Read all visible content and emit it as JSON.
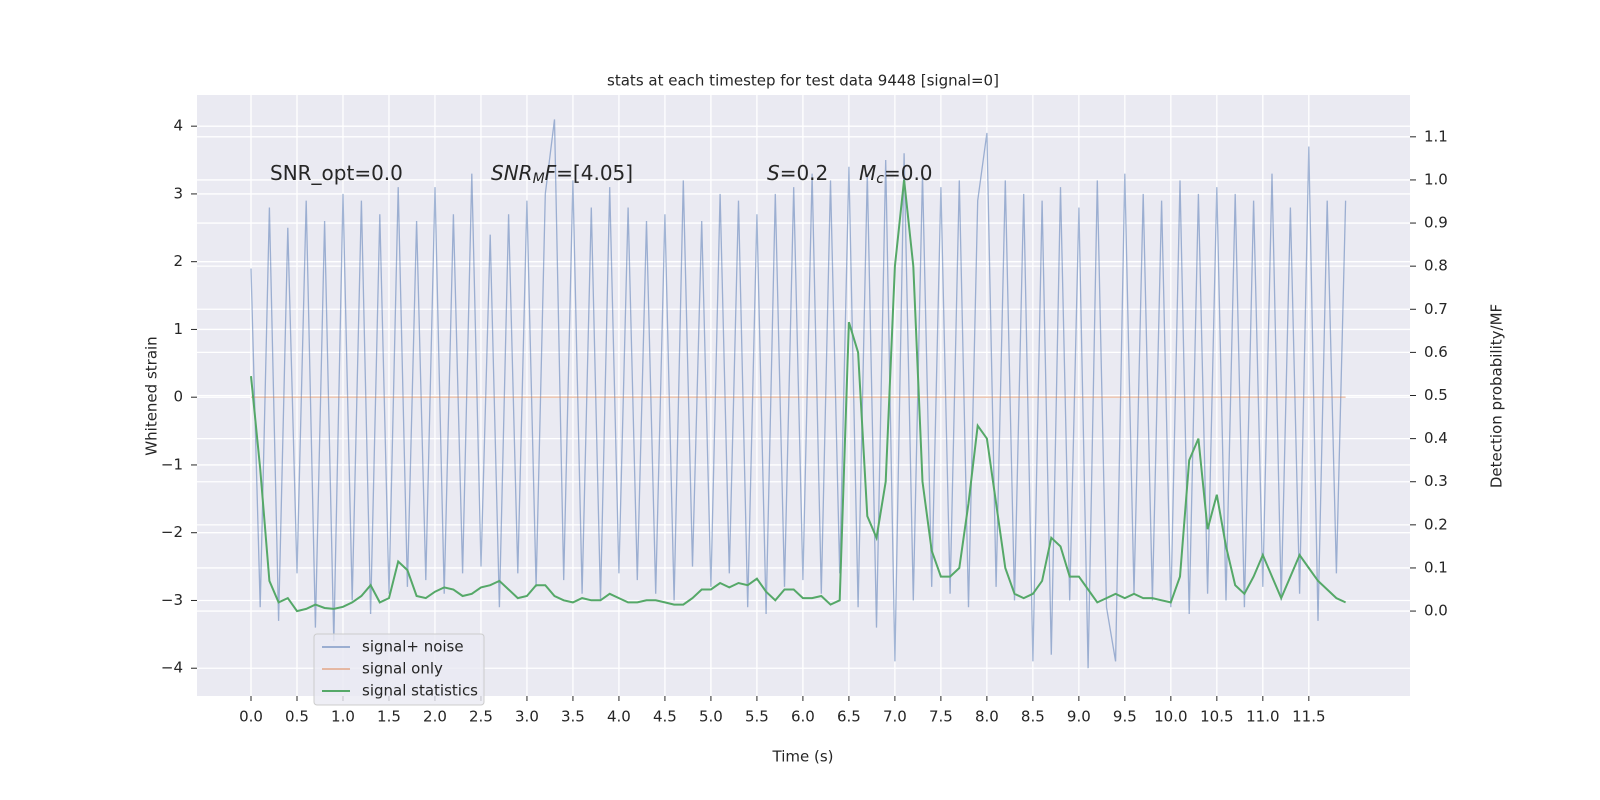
{
  "chart_data": {
    "type": "line",
    "title": "stats at each timestep for test data 9448 [signal=0]",
    "xlabel": "Time (s)",
    "ylabel": "Whitened strain",
    "y2label": "Detection probability/MF",
    "annotations": [
      {
        "parts": [
          {
            "text": "SNR_opt=0.0"
          }
        ]
      },
      {
        "parts": [
          {
            "text": "SNR",
            "style": "italic"
          },
          {
            "text": "M",
            "style": "sub"
          },
          {
            "text": "F",
            "style": "italic"
          },
          {
            "text": "=[4.05]"
          }
        ]
      },
      {
        "parts": [
          {
            "text": "S",
            "style": "italic"
          },
          {
            "text": "=0.2"
          }
        ]
      },
      {
        "parts": [
          {
            "text": "M",
            "style": "italic"
          },
          {
            "text": "c",
            "style": "sub"
          },
          {
            "text": "=0.0"
          }
        ]
      }
    ],
    "x": [
      0.0,
      0.1,
      0.2,
      0.3,
      0.4,
      0.5,
      0.6,
      0.7,
      0.8,
      0.9,
      1.0,
      1.1,
      1.2,
      1.3,
      1.4,
      1.5,
      1.6,
      1.7,
      1.8,
      1.9,
      2.0,
      2.1,
      2.2,
      2.3,
      2.4,
      2.5,
      2.6,
      2.7,
      2.8,
      2.9,
      3.0,
      3.1,
      3.2,
      3.3,
      3.4,
      3.5,
      3.6,
      3.7,
      3.8,
      3.9,
      4.0,
      4.1,
      4.2,
      4.3,
      4.4,
      4.5,
      4.6,
      4.7,
      4.8,
      4.9,
      5.0,
      5.1,
      5.2,
      5.3,
      5.4,
      5.5,
      5.6,
      5.7,
      5.8,
      5.9,
      6.0,
      6.1,
      6.2,
      6.3,
      6.4,
      6.5,
      6.6,
      6.7,
      6.8,
      6.9,
      7.0,
      7.1,
      7.2,
      7.3,
      7.4,
      7.5,
      7.6,
      7.7,
      7.8,
      7.9,
      8.0,
      8.1,
      8.2,
      8.3,
      8.4,
      8.5,
      8.6,
      8.7,
      8.8,
      8.9,
      9.0,
      9.1,
      9.2,
      9.3,
      9.4,
      9.5,
      9.6,
      9.7,
      9.8,
      9.9,
      10.0,
      10.1,
      10.2,
      10.3,
      10.4,
      10.5,
      10.6,
      10.7,
      10.8,
      10.9,
      11.0,
      11.1,
      11.2,
      11.3,
      11.4,
      11.5,
      11.6,
      11.7,
      11.8,
      11.9
    ],
    "series": [
      {
        "name": "signal+ noise",
        "color": "#4c72b0",
        "alpha": 0.5,
        "axis": "y",
        "values": [
          1.9,
          -3.1,
          2.8,
          -3.3,
          2.5,
          -2.6,
          2.9,
          -3.4,
          2.6,
          -3.6,
          3.0,
          -3.0,
          2.9,
          -3.2,
          2.7,
          -2.9,
          3.1,
          -2.8,
          2.6,
          -2.7,
          3.1,
          -2.9,
          2.7,
          -2.6,
          3.3,
          -2.5,
          2.4,
          -3.1,
          2.7,
          -2.6,
          2.9,
          -2.8,
          3.0,
          4.1,
          -2.7,
          3.2,
          -2.9,
          2.8,
          -3.0,
          3.1,
          -2.6,
          2.8,
          -2.7,
          2.6,
          -2.9,
          2.7,
          -3.0,
          3.2,
          -2.5,
          2.6,
          -2.8,
          3.0,
          -2.6,
          2.9,
          -3.1,
          2.7,
          -3.2,
          3.0,
          -2.8,
          3.1,
          -2.7,
          3.3,
          -2.9,
          3.2,
          -2.6,
          3.4,
          -3.1,
          3.3,
          -3.4,
          3.5,
          -3.9,
          3.6,
          -3.0,
          3.3,
          -2.8,
          3.1,
          -2.9,
          3.2,
          -3.1,
          2.9,
          3.9,
          -2.8,
          3.2,
          -3.0,
          3.0,
          -3.9,
          2.9,
          -3.8,
          3.1,
          -3.0,
          2.8,
          -4.0,
          3.2,
          -3.1,
          -3.9,
          3.3,
          -2.9,
          3.0,
          -3.0,
          2.9,
          -3.1,
          3.2,
          -3.2,
          3.0,
          -2.9,
          3.1,
          -3.0,
          3.0,
          -3.1,
          2.9,
          -2.8,
          3.3,
          -3.0,
          2.8,
          -2.9,
          3.7,
          -3.3,
          2.9,
          -2.6,
          2.9
        ]
      },
      {
        "name": "signal only",
        "color": "#dd8452",
        "alpha": 0.5,
        "axis": "y",
        "values": [
          0,
          0,
          0,
          0,
          0,
          0,
          0,
          0,
          0,
          0,
          0,
          0,
          0,
          0,
          0,
          0,
          0,
          0,
          0,
          0,
          0,
          0,
          0,
          0,
          0,
          0,
          0,
          0,
          0,
          0,
          0,
          0,
          0,
          0,
          0,
          0,
          0,
          0,
          0,
          0,
          0,
          0,
          0,
          0,
          0,
          0,
          0,
          0,
          0,
          0,
          0,
          0,
          0,
          0,
          0,
          0,
          0,
          0,
          0,
          0,
          0,
          0,
          0,
          0,
          0,
          0,
          0,
          0,
          0,
          0,
          0,
          0,
          0,
          0,
          0,
          0,
          0,
          0,
          0,
          0,
          0,
          0,
          0,
          0,
          0,
          0,
          0,
          0,
          0,
          0,
          0,
          0,
          0,
          0,
          0,
          0,
          0,
          0,
          0,
          0,
          0,
          0,
          0,
          0,
          0,
          0,
          0,
          0,
          0,
          0,
          0,
          0,
          0,
          0,
          0,
          0,
          0,
          0,
          0,
          0
        ]
      },
      {
        "name": "signal statistics",
        "color": "#55a868",
        "alpha": 1,
        "axis": "y2",
        "values": [
          0.545,
          0.33,
          0.07,
          0.02,
          0.03,
          0.0,
          0.005,
          0.015,
          0.007,
          0.005,
          0.01,
          0.02,
          0.035,
          0.06,
          0.02,
          0.03,
          0.115,
          0.095,
          0.035,
          0.03,
          0.045,
          0.055,
          0.05,
          0.035,
          0.04,
          0.055,
          0.06,
          0.07,
          0.05,
          0.03,
          0.035,
          0.06,
          0.06,
          0.035,
          0.025,
          0.02,
          0.03,
          0.025,
          0.025,
          0.04,
          0.03,
          0.02,
          0.02,
          0.025,
          0.025,
          0.02,
          0.015,
          0.015,
          0.03,
          0.05,
          0.05,
          0.065,
          0.055,
          0.065,
          0.06,
          0.075,
          0.045,
          0.025,
          0.05,
          0.05,
          0.03,
          0.03,
          0.035,
          0.015,
          0.025,
          0.67,
          0.6,
          0.22,
          0.17,
          0.3,
          0.8,
          1.0,
          0.8,
          0.3,
          0.14,
          0.08,
          0.08,
          0.1,
          0.25,
          0.43,
          0.4,
          0.25,
          0.1,
          0.04,
          0.03,
          0.04,
          0.07,
          0.17,
          0.15,
          0.08,
          0.08,
          0.05,
          0.02,
          0.03,
          0.04,
          0.03,
          0.04,
          0.03,
          0.03,
          0.025,
          0.02,
          0.08,
          0.35,
          0.4,
          0.19,
          0.27,
          0.15,
          0.06,
          0.04,
          0.08,
          0.13,
          0.08,
          0.03,
          0.08,
          0.13,
          0.1,
          0.07,
          0.05,
          0.03,
          0.02
        ]
      }
    ],
    "xlim": [
      -0.587,
      12.6
    ],
    "xticks": [
      {
        "value": 0,
        "label": "0.0"
      },
      0.5,
      {
        "value": 1,
        "label": "1.0"
      },
      1.5,
      {
        "value": 2,
        "label": "2.0"
      },
      2.5,
      {
        "value": 3,
        "label": "3.0"
      },
      3.5,
      {
        "value": 4,
        "label": "4.0"
      },
      4.5,
      {
        "value": 5,
        "label": "5.0"
      },
      5.5,
      {
        "value": 6,
        "label": "6.0"
      },
      6.5,
      {
        "value": 7,
        "label": "7.0"
      },
      7.5,
      {
        "value": 8,
        "label": "8.0"
      },
      8.5,
      {
        "value": 9,
        "label": "9.0"
      },
      9.5,
      {
        "value": 10,
        "label": "10.0"
      },
      10.5,
      {
        "value": 11,
        "label": "11.0"
      },
      11.5
    ],
    "ylim": [
      -4.41,
      4.46
    ],
    "yticks": [
      {
        "value": -4,
        "label": "−4"
      },
      {
        "value": -3,
        "label": "−3"
      },
      {
        "value": -2,
        "label": "−2"
      },
      {
        "value": -1,
        "label": "−1"
      },
      0,
      1,
      2,
      3,
      4
    ],
    "y2lim": [
      -0.197,
      1.197
    ],
    "y2ticks": [
      {
        "value": 0,
        "label": "0.0"
      },
      0.1,
      0.2,
      0.3,
      0.4,
      0.5,
      0.6,
      0.7,
      0.8,
      0.9,
      {
        "value": 1,
        "label": "1.0"
      },
      1.1
    ],
    "grid": true,
    "legend": "lower left"
  }
}
